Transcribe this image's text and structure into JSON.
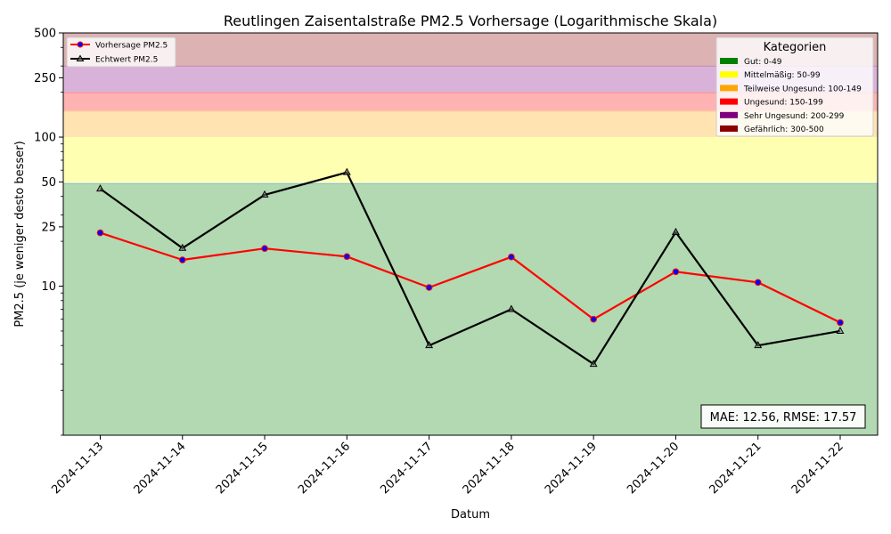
{
  "chart_data": {
    "type": "line",
    "title": "Reutlingen Zaisentalstraße PM2.5 Vorhersage (Logarithmische Skala)",
    "xlabel": "Datum",
    "ylabel": "PM2.5 (je weniger desto besser)",
    "yscale": "log",
    "ylim": [
      1,
      500
    ],
    "yticks": [
      {
        "value": 10,
        "label": "10"
      },
      {
        "value": 25,
        "label": "25"
      },
      {
        "value": 50,
        "label": "50"
      },
      {
        "value": 100,
        "label": "100"
      },
      {
        "value": 250,
        "label": "250"
      },
      {
        "value": 500,
        "label": "500"
      }
    ],
    "categories": [
      "2024-11-13",
      "2024-11-14",
      "2024-11-15",
      "2024-11-16",
      "2024-11-17",
      "2024-11-18",
      "2024-11-19",
      "2024-11-20",
      "2024-11-21",
      "2024-11-22"
    ],
    "series": [
      {
        "name": "Vorhersage PM2.5",
        "color": "#ff0000",
        "marker": "circle",
        "marker_color": "#0000ff",
        "values": [
          22.8,
          15.0,
          17.9,
          15.8,
          9.8,
          15.7,
          6.0,
          12.5,
          10.6,
          5.7
        ]
      },
      {
        "name": "Echtwert PM2.5",
        "color": "#000000",
        "marker": "triangle",
        "values": [
          45,
          18,
          41,
          58,
          4,
          7,
          3,
          23,
          4,
          5
        ]
      }
    ],
    "bands": [
      {
        "label": "Gut: 0-49",
        "from": 0,
        "to": 49,
        "color": "#008000"
      },
      {
        "label": "Mittelmäßig: 50-99",
        "from": 50,
        "to": 99,
        "color": "#ffff00"
      },
      {
        "label": "Teilweise Ungesund: 100-149",
        "from": 100,
        "to": 149,
        "color": "#ffa500"
      },
      {
        "label": "Ungesund: 150-199",
        "from": 150,
        "to": 199,
        "color": "#ff0000"
      },
      {
        "label": "Sehr Ungesund: 200-299",
        "from": 200,
        "to": 299,
        "color": "#800080"
      },
      {
        "label": "Gefährlich: 300-500",
        "from": 300,
        "to": 500,
        "color": "#8b0000"
      }
    ],
    "categories_legend_title": "Kategorien",
    "metrics_text": "MAE: 12.56, RMSE: 17.57"
  }
}
